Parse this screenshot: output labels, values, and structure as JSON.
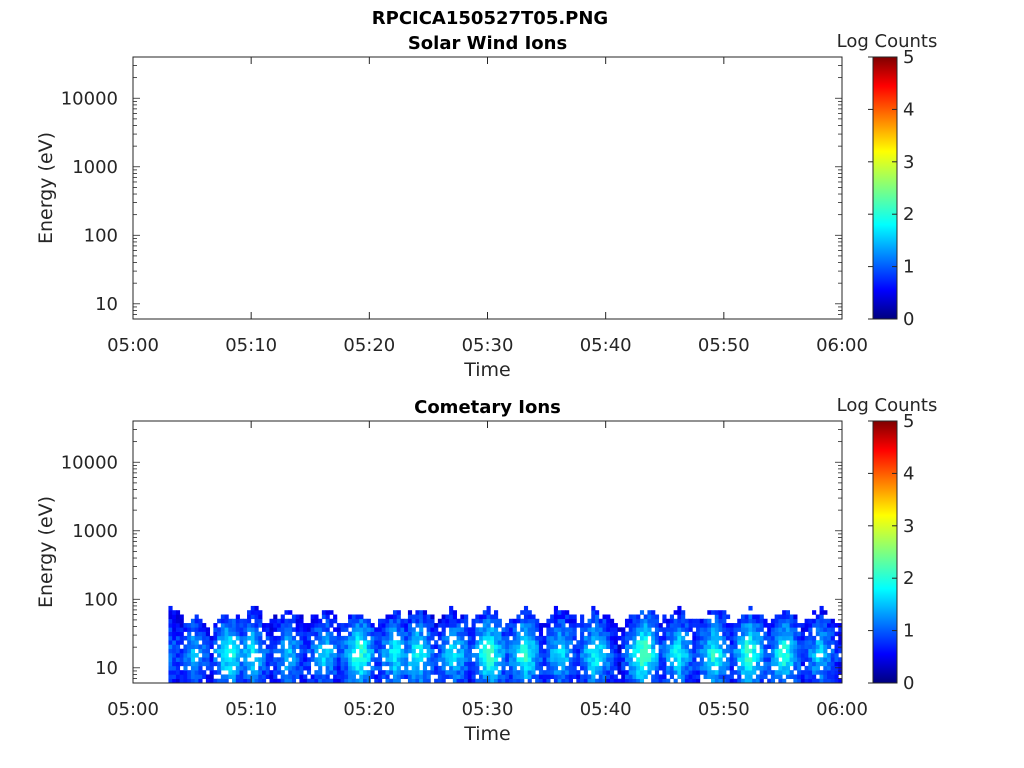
{
  "figure": {
    "title": "RPCICA150527T05.PNG"
  },
  "chart_data": [
    {
      "type": "heatmap",
      "title": "Solar Wind Ions",
      "xlabel": "Time",
      "ylabel": "Energy (eV)",
      "x_ticks": [
        "05:00",
        "05:10",
        "05:20",
        "05:30",
        "05:40",
        "05:50",
        "06:00"
      ],
      "y_ticks": [
        "10",
        "100",
        "1000",
        "10000"
      ],
      "y_scale": "log",
      "xlim": [
        "05:00",
        "06:00"
      ],
      "ylim": [
        6,
        40000
      ],
      "colorbar": {
        "label": "Log Counts",
        "ticks": [
          "0",
          "1",
          "2",
          "3",
          "4",
          "5"
        ],
        "range": [
          0,
          5
        ],
        "colormap": "jet"
      },
      "grid": false,
      "data": []
    },
    {
      "type": "heatmap",
      "title": "Cometary Ions",
      "xlabel": "Time",
      "ylabel": "Energy (eV)",
      "x_ticks": [
        "05:00",
        "05:10",
        "05:20",
        "05:30",
        "05:40",
        "05:50",
        "06:00"
      ],
      "y_ticks": [
        "10",
        "100",
        "1000",
        "10000"
      ],
      "y_scale": "log",
      "xlim": [
        "05:00",
        "06:00"
      ],
      "ylim": [
        6,
        40000
      ],
      "colorbar": {
        "label": "Log Counts",
        "ticks": [
          "0",
          "1",
          "2",
          "3",
          "4",
          "5"
        ],
        "range": [
          0,
          5
        ],
        "colormap": "jet"
      },
      "grid": false,
      "data_time_range": [
        "05:03",
        "06:00"
      ],
      "data_energy_range": [
        6,
        80
      ],
      "peak_log_counts": 2.2,
      "bursts": [
        {
          "t": "05:03",
          "top": 80,
          "peak": 0.8
        },
        {
          "t": "05:05",
          "top": 60,
          "peak": 1.2
        },
        {
          "t": "05:08",
          "top": 70,
          "peak": 1.8
        },
        {
          "t": "05:10",
          "top": 80,
          "peak": 1.5
        },
        {
          "t": "05:13",
          "top": 75,
          "peak": 1.3
        },
        {
          "t": "05:16",
          "top": 80,
          "peak": 1.4
        },
        {
          "t": "05:19",
          "top": 70,
          "peak": 2.0
        },
        {
          "t": "05:22",
          "top": 75,
          "peak": 1.6
        },
        {
          "t": "05:24",
          "top": 80,
          "peak": 1.7
        },
        {
          "t": "05:27",
          "top": 80,
          "peak": 1.5
        },
        {
          "t": "05:30",
          "top": 80,
          "peak": 2.0
        },
        {
          "t": "05:33",
          "top": 80,
          "peak": 1.9
        },
        {
          "t": "05:36",
          "top": 80,
          "peak": 1.5
        },
        {
          "t": "05:39",
          "top": 80,
          "peak": 1.7
        },
        {
          "t": "05:43",
          "top": 80,
          "peak": 2.2
        },
        {
          "t": "05:46",
          "top": 80,
          "peak": 1.6
        },
        {
          "t": "05:49",
          "top": 80,
          "peak": 1.8
        },
        {
          "t": "05:52",
          "top": 80,
          "peak": 2.0
        },
        {
          "t": "05:55",
          "top": 80,
          "peak": 1.8
        },
        {
          "t": "05:58",
          "top": 80,
          "peak": 1.4
        }
      ]
    }
  ]
}
